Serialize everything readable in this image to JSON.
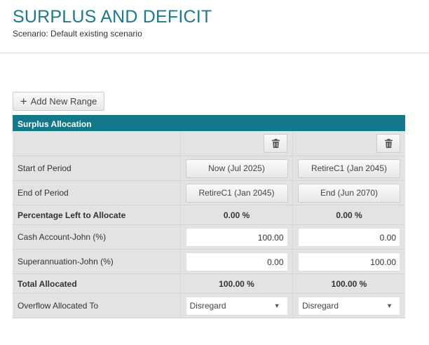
{
  "page": {
    "title": "SURPLUS AND DEFICIT",
    "subtitle": "Scenario: Default existing scenario"
  },
  "toolbar": {
    "add_label": "Add New Range"
  },
  "table": {
    "header": "Surplus Allocation",
    "rows": {
      "start": {
        "label": "Start of Period",
        "values": [
          "Now (Jul 2025)",
          "RetireC1 (Jan 2045)"
        ]
      },
      "end": {
        "label": "End of Period",
        "values": [
          "RetireC1 (Jan 2045)",
          "End (Jun 2070)"
        ]
      },
      "pct_left": {
        "label": "Percentage Left to Allocate",
        "values": [
          "0.00 %",
          "0.00 %"
        ]
      },
      "cash": {
        "label": "Cash Account-John (%)",
        "values": [
          "100.00",
          "0.00"
        ]
      },
      "super": {
        "label": "Superannuation-John (%)",
        "values": [
          "0.00",
          "100.00"
        ]
      },
      "total": {
        "label": "Total Allocated",
        "values": [
          "100.00 %",
          "100.00 %"
        ]
      },
      "overflow": {
        "label": "Overflow Allocated To",
        "values": [
          "Disregard",
          "Disregard"
        ]
      }
    }
  },
  "colors": {
    "accent": "#13788b",
    "title": "#1b7b8e"
  }
}
